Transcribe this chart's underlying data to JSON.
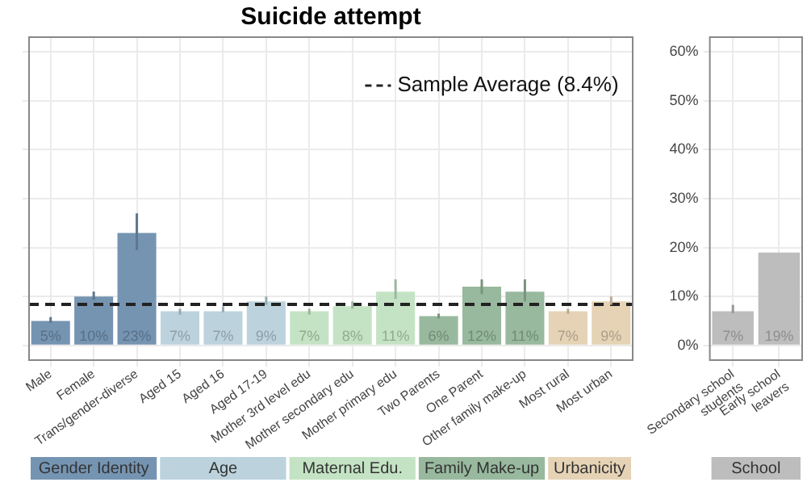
{
  "chart_data": [
    {
      "type": "bar",
      "title": "Suicide attempt",
      "categories": [
        "Male",
        "Female",
        "Trans/gender-diverse",
        "Aged 15",
        "Aged 16",
        "Aged 17-19",
        "Mother 3rd level edu",
        "Mother secondary edu",
        "Mother primary edu",
        "Two Parents",
        "One Parent",
        "Other family make-up",
        "Most rural",
        "Most urban"
      ],
      "series": [
        {
          "name": "Gender Identity",
          "color": "#7594b2",
          "values": [
            5,
            10,
            23,
            null,
            null,
            null,
            null,
            null,
            null,
            null,
            null,
            null,
            null,
            null
          ],
          "errors": [
            [
              4.6,
              5.8
            ],
            [
              9.3,
              11
            ],
            [
              19.5,
              27
            ],
            null,
            null,
            null,
            null,
            null,
            null,
            null,
            null,
            null,
            null,
            null
          ],
          "value_labels": [
            "5%",
            "10%",
            "23%",
            null,
            null,
            null,
            null,
            null,
            null,
            null,
            null,
            null,
            null,
            null
          ]
        },
        {
          "name": "Age",
          "color": "#bcd3de",
          "values": [
            null,
            null,
            null,
            7,
            7,
            9,
            null,
            null,
            null,
            null,
            null,
            null,
            null,
            null
          ],
          "errors": [
            null,
            null,
            null,
            [
              6.3,
              7.5
            ],
            [
              6.8,
              8
            ],
            [
              8.3,
              10
            ],
            null,
            null,
            null,
            null,
            null,
            null,
            null,
            null
          ],
          "value_labels": [
            null,
            null,
            null,
            "7%",
            "7%",
            "9%",
            null,
            null,
            null,
            null,
            null,
            null,
            null,
            null
          ]
        },
        {
          "name": "Maternal Edu.",
          "color": "#c4e3c4",
          "values": [
            null,
            null,
            null,
            null,
            null,
            null,
            7,
            8,
            11,
            null,
            null,
            null,
            null,
            null
          ],
          "errors": [
            null,
            null,
            null,
            null,
            null,
            null,
            [
              6.3,
              7.5
            ],
            [
              7.5,
              9
            ],
            [
              9.5,
              13.5
            ],
            null,
            null,
            null,
            null,
            null
          ],
          "value_labels": [
            null,
            null,
            null,
            null,
            null,
            null,
            "7%",
            "8%",
            "11%",
            null,
            null,
            null,
            null,
            null
          ]
        },
        {
          "name": "Family Make-up",
          "color": "#98b99e",
          "values": [
            null,
            null,
            null,
            null,
            null,
            null,
            null,
            null,
            null,
            6,
            12,
            11,
            null,
            null
          ],
          "errors": [
            null,
            null,
            null,
            null,
            null,
            null,
            null,
            null,
            null,
            [
              5.5,
              6.5
            ],
            [
              10.5,
              13.5
            ],
            [
              9,
              13.5
            ],
            null,
            null
          ],
          "value_labels": [
            null,
            null,
            null,
            null,
            null,
            null,
            null,
            null,
            null,
            "6%",
            "12%",
            "11%",
            null,
            null
          ]
        },
        {
          "name": "Urbanicity",
          "color": "#e6d3b6",
          "values": [
            null,
            null,
            null,
            null,
            null,
            null,
            null,
            null,
            null,
            null,
            null,
            null,
            7,
            9
          ],
          "errors": [
            null,
            null,
            null,
            null,
            null,
            null,
            null,
            null,
            null,
            null,
            null,
            null,
            [
              6.5,
              7.5
            ],
            [
              8.3,
              10
            ]
          ],
          "value_labels": [
            null,
            null,
            null,
            null,
            null,
            null,
            null,
            null,
            null,
            null,
            null,
            null,
            "7%",
            "9%"
          ]
        }
      ],
      "ylim": [
        -3,
        63
      ],
      "yticks": [
        0,
        10,
        20,
        30,
        40,
        50,
        60
      ],
      "tick_labels": "x",
      "grid": true,
      "legend": "top right",
      "ref_lines": [
        {
          "axis": "y",
          "value": 8.4,
          "label": "Sample Average (8.4%)",
          "line_style": "dashed",
          "color": "#222222"
        }
      ]
    },
    {
      "type": "bar",
      "categories": [
        "Secondary school students",
        "Early school leavers"
      ],
      "series": [
        {
          "name": "School",
          "color": "#bdbdbd",
          "values": [
            7,
            19
          ],
          "errors": [
            [
              6.6,
              8.3
            ],
            null
          ],
          "value_labels": [
            "7%",
            "19%"
          ]
        }
      ],
      "ylim": [
        -3,
        63
      ],
      "yticks": [
        {
          "value": 0,
          "label": "0%"
        },
        {
          "value": 10,
          "label": "10%"
        },
        {
          "value": 20,
          "label": "20%"
        },
        {
          "value": 30,
          "label": "30%"
        },
        {
          "value": 40,
          "label": "40%"
        },
        {
          "value": 50,
          "label": "50%"
        },
        {
          "value": 60,
          "label": "60%"
        }
      ],
      "grid": true
    }
  ]
}
